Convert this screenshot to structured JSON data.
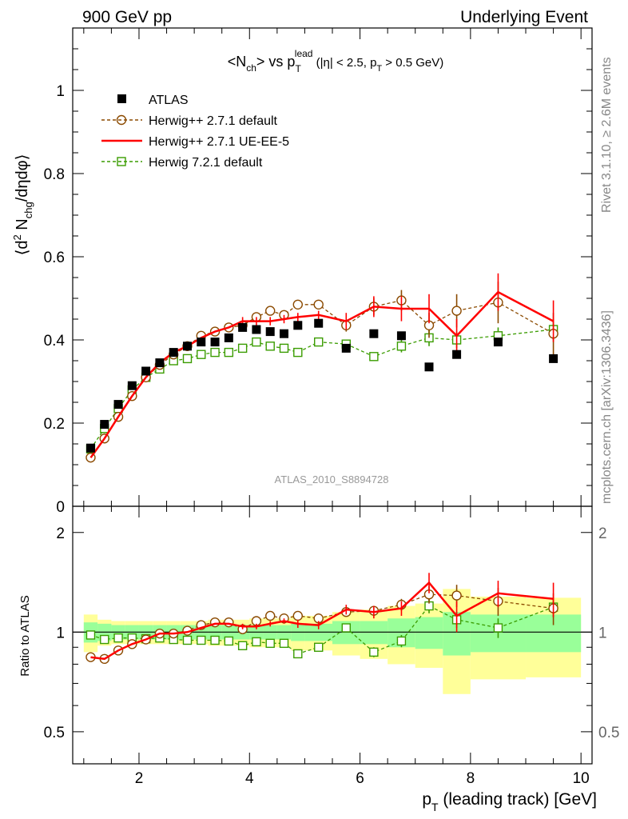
{
  "header": {
    "left": "900 GeV pp",
    "right": "Underlying Event"
  },
  "side_labels": {
    "rivet": "Rivet 3.1.10, ≥ 2.6M events",
    "mcplots": "mcplots.cern.ch [arXiv:1306.3436]"
  },
  "watermark": "ATLAS_2010_S8894728",
  "chart_data": [
    {
      "type": "line",
      "title": "<N_ch> vs p_T^lead (|η| < 2.5, p_T > 0.5 GeV)",
      "title_parts": {
        "a": "<N",
        "a_sub": "ch",
        "b": "> vs p",
        "b_sub": "T",
        "b_sup": "lead",
        "c": " (|η| < 2.5, p",
        "c_sub": "T",
        "d": " > 0.5 GeV)"
      },
      "ylabel": "⟨d² N_chg/dηdφ⟩",
      "ylabel_parts": {
        "a": "⟨d",
        "a_sup": "2",
        "b": " N",
        "b_sub": "chg",
        "c": "/dηdφ⟩"
      },
      "xlim": [
        0.8,
        10.2
      ],
      "ylim": [
        0,
        1.15
      ],
      "yticks": [
        0,
        0.2,
        0.4,
        0.6,
        0.8,
        1
      ],
      "ytick_labels": [
        "0",
        "0.2",
        "0.4",
        "0.6",
        "0.8",
        "1"
      ],
      "legend_position": "top-left",
      "legend": [
        {
          "name": "ATLAS"
        },
        {
          "name": "Herwig++ 2.7.1 default"
        },
        {
          "name": "Herwig++ 2.7.1 UE-EE-5"
        },
        {
          "name": "Herwig 7.2.1 default"
        }
      ],
      "x": [
        1.125,
        1.375,
        1.625,
        1.875,
        2.125,
        2.375,
        2.625,
        2.875,
        3.125,
        3.375,
        3.625,
        3.875,
        4.125,
        4.375,
        4.625,
        4.875,
        5.25,
        5.75,
        6.25,
        6.75,
        7.25,
        7.75,
        8.5,
        9.5
      ],
      "series": [
        {
          "name": "ATLAS",
          "marker": "filled-square",
          "color": "#000000",
          "values": [
            0.14,
            0.197,
            0.245,
            0.29,
            0.325,
            0.345,
            0.37,
            0.385,
            0.395,
            0.395,
            0.405,
            0.43,
            0.425,
            0.42,
            0.415,
            0.435,
            0.44,
            0.38,
            0.415,
            0.41,
            0.335,
            0.365,
            0.395,
            0.355
          ]
        },
        {
          "name": "Herwig++ 2.7.1 default",
          "marker": "open-circle",
          "line": "dashed",
          "color": "#8b4a00",
          "values": [
            0.117,
            0.163,
            0.215,
            0.265,
            0.31,
            0.34,
            0.365,
            0.385,
            0.41,
            0.42,
            0.43,
            0.435,
            0.455,
            0.47,
            0.46,
            0.485,
            0.485,
            0.435,
            0.48,
            0.495,
            0.435,
            0.47,
            0.49,
            0.415
          ],
          "errors": [
            0,
            0,
            0,
            0,
            0,
            0,
            0,
            0,
            0,
            0,
            0,
            0,
            0,
            0,
            0,
            0.01,
            0.01,
            0.015,
            0.02,
            0.025,
            0.03,
            0.04,
            0.05,
            0.05
          ]
        },
        {
          "name": "Herwig++ 2.7.1 UE-EE-5",
          "marker": "none",
          "line": "solid",
          "color": "#ff0000",
          "values": [
            0.117,
            0.163,
            0.215,
            0.265,
            0.31,
            0.345,
            0.37,
            0.385,
            0.405,
            0.42,
            0.43,
            0.445,
            0.445,
            0.445,
            0.45,
            0.455,
            0.46,
            0.445,
            0.48,
            0.475,
            0.475,
            0.41,
            0.515,
            0.445
          ],
          "errors": [
            0,
            0,
            0,
            0,
            0,
            0,
            0,
            0,
            0,
            0,
            0,
            0.01,
            0.01,
            0.01,
            0.01,
            0.01,
            0.01,
            0.02,
            0.025,
            0.03,
            0.035,
            0.04,
            0.045,
            0.05
          ]
        },
        {
          "name": "Herwig 7.2.1 default",
          "marker": "open-square",
          "line": "dashed",
          "color": "#3a9c00",
          "values": [
            0.138,
            0.187,
            0.235,
            0.28,
            0.31,
            0.33,
            0.35,
            0.355,
            0.365,
            0.37,
            0.37,
            0.38,
            0.395,
            0.385,
            0.38,
            0.37,
            0.395,
            0.39,
            0.36,
            0.385,
            0.405,
            0.4,
            0.41,
            0.425
          ],
          "errors": [
            0,
            0,
            0,
            0,
            0,
            0,
            0,
            0,
            0,
            0,
            0,
            0,
            0,
            0,
            0,
            0,
            0,
            0.01,
            0.01,
            0.015,
            0.02,
            0.02,
            0.02,
            0.025
          ]
        }
      ]
    },
    {
      "type": "line",
      "xlabel": "p_T (leading track) [GeV]",
      "xlabel_parts": {
        "a": "p",
        "a_sub": "T",
        "b": " (leading track) [GeV]"
      },
      "ylabel": "Ratio to ATLAS",
      "xlim": [
        0.8,
        10.2
      ],
      "ylim": [
        0.4,
        2.4
      ],
      "y_scale": "log",
      "yticks": [
        0.5,
        1,
        2
      ],
      "ytick_labels": [
        "0.5",
        "1",
        "2"
      ],
      "xticks": [
        2,
        4,
        6,
        8,
        10
      ],
      "xtick_labels": [
        "2",
        "4",
        "6",
        "8",
        "10"
      ],
      "reference_line": 1,
      "bands": {
        "bin_edges": [
          1.0,
          1.25,
          1.5,
          1.75,
          2.0,
          2.25,
          2.5,
          2.75,
          3.0,
          3.25,
          3.5,
          3.75,
          4.0,
          4.25,
          4.5,
          4.75,
          5.0,
          5.5,
          6.0,
          6.5,
          7.0,
          7.5,
          8.0,
          9.0,
          10.0
        ],
        "stat_color": "#99ff99",
        "total_color": "#ffff99",
        "stat_rel": [
          0.07,
          0.06,
          0.05,
          0.05,
          0.05,
          0.05,
          0.05,
          0.05,
          0.05,
          0.05,
          0.05,
          0.05,
          0.05,
          0.05,
          0.05,
          0.06,
          0.06,
          0.08,
          0.08,
          0.1,
          0.11,
          0.15,
          0.13,
          0.13
        ],
        "total_rel": [
          0.13,
          0.09,
          0.08,
          0.08,
          0.08,
          0.08,
          0.08,
          0.08,
          0.08,
          0.09,
          0.09,
          0.09,
          0.1,
          0.1,
          0.1,
          0.12,
          0.12,
          0.15,
          0.17,
          0.2,
          0.22,
          0.35,
          0.28,
          0.27
        ]
      },
      "series": [
        {
          "name": "Herwig++ 2.7.1 default",
          "marker": "open-circle",
          "line": "dashed",
          "color": "#8b4a00",
          "values": [
            0.84,
            0.83,
            0.88,
            0.92,
            0.95,
            0.99,
            0.99,
            1.01,
            1.05,
            1.07,
            1.07,
            1.02,
            1.08,
            1.12,
            1.1,
            1.12,
            1.1,
            1.15,
            1.16,
            1.21,
            1.3,
            1.29,
            1.24,
            1.18
          ],
          "errors": [
            0,
            0,
            0,
            0,
            0,
            0,
            0,
            0,
            0,
            0,
            0,
            0,
            0,
            0,
            0,
            0,
            0,
            0.03,
            0.04,
            0.05,
            0.08,
            0.1,
            0.12,
            0.13
          ]
        },
        {
          "name": "Herwig++ 2.7.1 UE-EE-5",
          "marker": "none",
          "line": "solid",
          "color": "#ff0000",
          "values": [
            0.84,
            0.83,
            0.88,
            0.92,
            0.95,
            0.99,
            0.99,
            1.0,
            1.03,
            1.06,
            1.06,
            1.04,
            1.04,
            1.06,
            1.08,
            1.06,
            1.05,
            1.17,
            1.15,
            1.18,
            1.41,
            1.12,
            1.31,
            1.26
          ],
          "errors": [
            0,
            0,
            0,
            0,
            0,
            0,
            0,
            0,
            0,
            0,
            0,
            0.02,
            0.02,
            0.02,
            0.02,
            0.03,
            0.03,
            0.04,
            0.05,
            0.06,
            0.1,
            0.12,
            0.12,
            0.15
          ]
        },
        {
          "name": "Herwig 7.2.1 default",
          "marker": "open-square",
          "line": "dashed",
          "color": "#3a9c00",
          "values": [
            0.98,
            0.95,
            0.96,
            0.96,
            0.955,
            0.96,
            0.95,
            0.945,
            0.945,
            0.945,
            0.94,
            0.91,
            0.935,
            0.925,
            0.925,
            0.86,
            0.9,
            1.03,
            0.87,
            0.94,
            1.2,
            1.09,
            1.03,
            1.19
          ],
          "errors": [
            0,
            0,
            0,
            0,
            0,
            0,
            0,
            0,
            0,
            0,
            0,
            0,
            0,
            0,
            0,
            0,
            0,
            0.03,
            0.03,
            0.04,
            0.06,
            0.06,
            0.07,
            0.08
          ]
        }
      ]
    }
  ]
}
